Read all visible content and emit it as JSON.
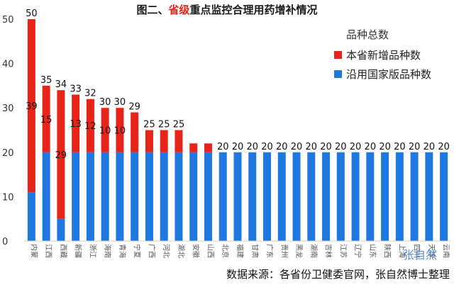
{
  "chart_data": {
    "type": "bar",
    "stacked": true,
    "title_prefix": "图二、",
    "title_highlight": "省级",
    "title_suffix": "重点监控合理用药增补情况",
    "ylim": [
      0,
      50
    ],
    "yticks": [
      0,
      10,
      20,
      30,
      40,
      50
    ],
    "legend_title": "品种总数",
    "legend_position": "top-right",
    "grid": false,
    "categories": [
      "内蒙",
      "江西",
      "西藏",
      "新疆",
      "浙江",
      "海南",
      "青海",
      "宁夏",
      "广西",
      "河北",
      "湖北",
      "安徽",
      "山西",
      "北京",
      "福建",
      "甘肃",
      "广东",
      "贵州",
      "黑龙",
      "湖南",
      "吉林",
      "江苏",
      "辽宁",
      "山东",
      "陕西",
      "上海",
      "四川",
      "天津",
      "云南"
    ],
    "series": [
      {
        "name": "沿用国家版品种数",
        "color": "#1f77e0",
        "values": [
          11,
          20,
          5,
          20,
          20,
          20,
          20,
          20,
          20,
          20,
          20,
          20,
          20,
          20,
          20,
          20,
          20,
          20,
          20,
          20,
          20,
          20,
          20,
          20,
          20,
          20,
          20,
          20,
          20
        ]
      },
      {
        "name": "本省新增品种数",
        "color": "#e8231a",
        "values": [
          39,
          15,
          29,
          13,
          12,
          10,
          10,
          9,
          5,
          5,
          5,
          2,
          2,
          0,
          0,
          0,
          0,
          0,
          0,
          0,
          0,
          0,
          0,
          0,
          0,
          0,
          0,
          0,
          0
        ]
      }
    ],
    "totals": [
      50,
      35,
      34,
      33,
      32,
      30,
      30,
      29,
      25,
      25,
      25,
      22,
      22,
      20,
      20,
      20,
      20,
      20,
      20,
      20,
      20,
      20,
      20,
      20,
      20,
      20,
      20,
      20,
      20
    ],
    "total_labels": [
      "50",
      "35",
      "34",
      "33",
      "32",
      "30",
      "30",
      "29",
      "25",
      "25",
      "25",
      "",
      "",
      "20",
      "20",
      "20",
      "20",
      "20",
      "20",
      "20",
      "20",
      "20",
      "20",
      "20",
      "20",
      "20",
      "20",
      "20",
      "20"
    ],
    "segment_labels": [
      {
        "index": 0,
        "text": "39"
      },
      {
        "index": 1,
        "text": "15"
      },
      {
        "index": 2,
        "text": "29"
      },
      {
        "index": 3,
        "text": "13"
      },
      {
        "index": 4,
        "text": "12"
      },
      {
        "index": 5,
        "text": "10"
      },
      {
        "index": 6,
        "text": "10"
      }
    ],
    "source": "数据来源：各省份卫健委官网，张自然博士整理",
    "watermark": "张自然"
  }
}
